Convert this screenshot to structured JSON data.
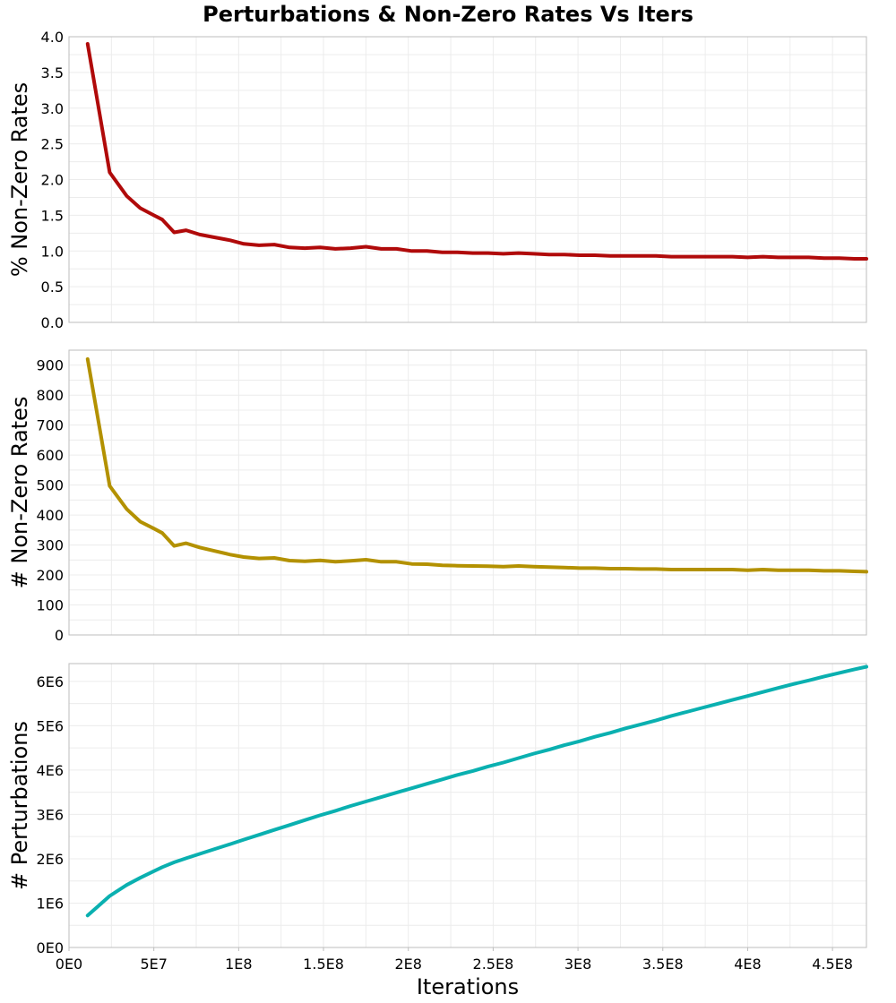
{
  "chart_data": {
    "type": "line",
    "title": "Perturbations & Non-Zero Rates Vs Iters",
    "xlabel": "Iterations",
    "xlim": [
      0,
      470000000
    ],
    "x_ticks": [
      0,
      50000000,
      100000000,
      150000000,
      200000000,
      250000000,
      300000000,
      350000000,
      400000000,
      450000000
    ],
    "x_tick_labels": [
      "0E0",
      "5E7",
      "1E8",
      "1.5E8",
      "2E8",
      "2.5E8",
      "3E8",
      "3.5E8",
      "4E8",
      "4.5E8"
    ],
    "grid": true,
    "x": [
      11000000,
      24000000,
      34000000,
      42000000,
      50000000,
      55000000,
      62000000,
      69000000,
      77000000,
      86000000,
      95000000,
      103000000,
      112000000,
      121000000,
      130000000,
      139000000,
      148000000,
      157000000,
      166000000,
      175000000,
      184000000,
      193000000,
      202000000,
      211000000,
      220000000,
      229000000,
      238000000,
      247000000,
      256000000,
      265000000,
      274000000,
      283000000,
      292000000,
      301000000,
      310000000,
      319000000,
      328000000,
      337000000,
      346000000,
      355000000,
      364000000,
      373000000,
      382000000,
      391000000,
      400000000,
      409000000,
      418000000,
      427000000,
      436000000,
      445000000,
      454000000,
      463000000,
      470000000
    ],
    "panels": [
      {
        "ylabel": "% Non-Zero Rates",
        "ylim": [
          0,
          4
        ],
        "y_ticks": [
          0,
          0.5,
          1,
          1.5,
          2,
          2.5,
          3,
          3.5,
          4
        ],
        "y_tick_labels": [
          "0.0",
          "0.5",
          "1.0",
          "1.5",
          "2.0",
          "2.5",
          "3.0",
          "3.5",
          "4.0"
        ],
        "color": "#b00a0a",
        "values": [
          3.9,
          2.1,
          1.77,
          1.6,
          1.5,
          1.44,
          1.26,
          1.29,
          1.23,
          1.19,
          1.15,
          1.1,
          1.08,
          1.09,
          1.05,
          1.04,
          1.05,
          1.03,
          1.04,
          1.06,
          1.03,
          1.03,
          1.0,
          1.0,
          0.98,
          0.98,
          0.97,
          0.97,
          0.96,
          0.97,
          0.96,
          0.95,
          0.95,
          0.94,
          0.94,
          0.93,
          0.93,
          0.93,
          0.93,
          0.92,
          0.92,
          0.92,
          0.92,
          0.92,
          0.91,
          0.92,
          0.91,
          0.91,
          0.91,
          0.9,
          0.9,
          0.89,
          0.89
        ]
      },
      {
        "ylabel": "# Non-Zero Rates",
        "ylim": [
          0,
          950
        ],
        "y_ticks": [
          0,
          100,
          200,
          300,
          400,
          500,
          600,
          700,
          800,
          900
        ],
        "y_tick_labels": [
          "0",
          "100",
          "200",
          "300",
          "400",
          "500",
          "600",
          "700",
          "800",
          "900"
        ],
        "color": "#b39100",
        "values": [
          920,
          497,
          420,
          378,
          355,
          340,
          297,
          306,
          292,
          280,
          268,
          260,
          255,
          257,
          248,
          246,
          249,
          244,
          247,
          251,
          244,
          244,
          237,
          236,
          232,
          231,
          230,
          229,
          228,
          230,
          228,
          226,
          225,
          223,
          223,
          221,
          221,
          220,
          220,
          218,
          218,
          218,
          218,
          218,
          216,
          218,
          216,
          216,
          216,
          214,
          214,
          212,
          211
        ]
      },
      {
        "ylabel": "# Perturbations",
        "ylim": [
          0,
          6400000
        ],
        "y_ticks": [
          0,
          1000000,
          2000000,
          3000000,
          4000000,
          5000000,
          6000000
        ],
        "y_tick_labels": [
          "0E0",
          "1E6",
          "2E6",
          "3E6",
          "4E6",
          "5E6",
          "6E6"
        ],
        "color": "#0ab0b0",
        "values": [
          720000,
          1160000,
          1410000,
          1570000,
          1720000,
          1810000,
          1920000,
          2010000,
          2110000,
          2220000,
          2330000,
          2430000,
          2540000,
          2650000,
          2760000,
          2870000,
          2980000,
          3080000,
          3190000,
          3290000,
          3390000,
          3490000,
          3590000,
          3690000,
          3790000,
          3890000,
          3980000,
          4080000,
          4170000,
          4270000,
          4370000,
          4460000,
          4560000,
          4650000,
          4750000,
          4840000,
          4940000,
          5030000,
          5120000,
          5220000,
          5310000,
          5400000,
          5490000,
          5580000,
          5670000,
          5760000,
          5850000,
          5940000,
          6020000,
          6110000,
          6190000,
          6270000,
          6330000
        ]
      }
    ]
  }
}
